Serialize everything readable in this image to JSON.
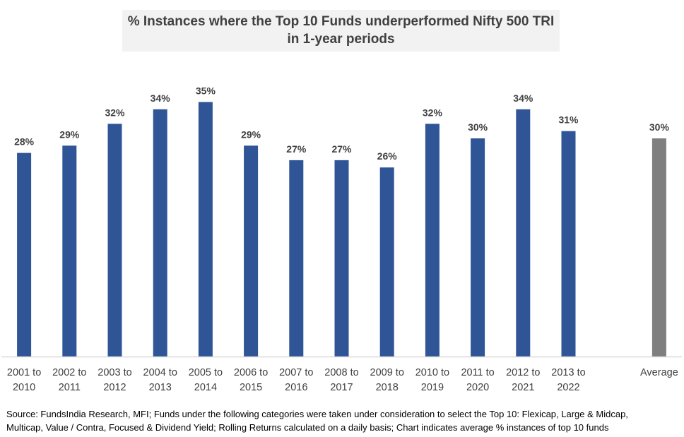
{
  "chart_data": {
    "type": "bar",
    "title": "% Instances where the Top 10 Funds underperformed Nifty 500 TRI",
    "subtitle": "in 1-year periods",
    "xlabel": "",
    "ylabel": "",
    "ylim": [
      0,
      40
    ],
    "grid": false,
    "legend": "none",
    "categories": [
      [
        "2001 to",
        "2010"
      ],
      [
        "2002 to",
        "2011"
      ],
      [
        "2003 to",
        "2012"
      ],
      [
        "2004 to",
        "2013"
      ],
      [
        "2005 to",
        "2014"
      ],
      [
        "2006 to",
        "2015"
      ],
      [
        "2007 to",
        "2016"
      ],
      [
        "2008 to",
        "2017"
      ],
      [
        "2009 to",
        "2018"
      ],
      [
        "2010 to",
        "2019"
      ],
      [
        "2011 to",
        "2020"
      ],
      [
        "2012 to",
        "2021"
      ],
      [
        "2013 to",
        "2022"
      ],
      [
        "",
        ""
      ],
      [
        "Average",
        ""
      ]
    ],
    "values": [
      28,
      29,
      32,
      34,
      35,
      29,
      27,
      27,
      26,
      32,
      30,
      34,
      31,
      null,
      30
    ],
    "data_labels": [
      "28%",
      "29%",
      "32%",
      "34%",
      "35%",
      "29%",
      "27%",
      "27%",
      "26%",
      "32%",
      "30%",
      "34%",
      "31%",
      "",
      "30%"
    ],
    "colors": {
      "period_bar": "#2f5597",
      "average_bar": "#7f7f7f",
      "label_text": "#404040",
      "axis_line": "#d9d9d9"
    }
  },
  "footnote": {
    "line1": "Source: FundsIndia Research, MFI; Funds under the following categories were taken under consideration to select the Top 10: Flexicap, Large & Midcap,",
    "line2": "Multicap, Value / Contra, Focused & Dividend Yield; Rolling Returns calculated on a daily basis; Chart indicates average % instances of top 10 funds"
  }
}
